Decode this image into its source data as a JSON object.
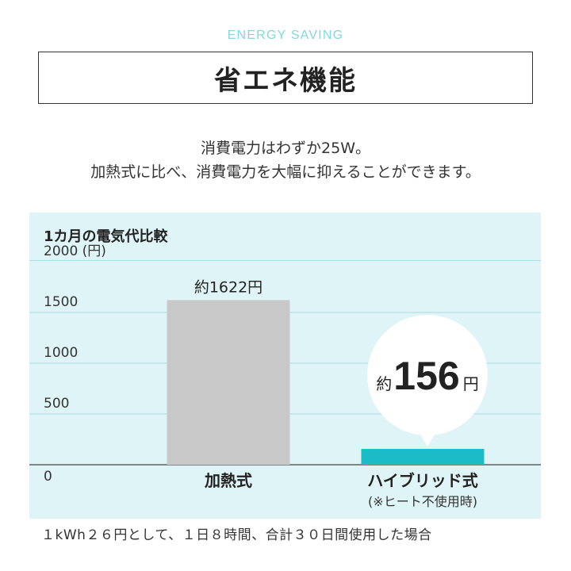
{
  "header": {
    "eyebrow": "ENERGY SAVING",
    "title": "省エネ機能"
  },
  "description": {
    "line1": "消費電力はわずか25W。",
    "line2": "加熱式に比べ、消費電力を大幅に抑えることができます。"
  },
  "colors": {
    "accent": "#1bbcc8",
    "eyebrow": "#7fd8de",
    "panel_bg": "#dff4f6",
    "gray_bar": "#c8c8c8"
  },
  "chart_data": {
    "type": "bar",
    "title": "1カ月の電気代比較",
    "y_unit_label": "(円)",
    "ylim": [
      0,
      2000
    ],
    "yticks": [
      "2000",
      "1500",
      "1000",
      "500",
      "0"
    ],
    "categories": [
      "加熱式",
      "ハイブリッド式"
    ],
    "category_notes": [
      "",
      "(※ヒート不使用時)"
    ],
    "values": [
      1622,
      156
    ],
    "value_labels": [
      {
        "prefix": "約",
        "number": "1622",
        "suffix": "円"
      },
      {
        "prefix": "約",
        "number": "156",
        "suffix": "円"
      }
    ],
    "bar_colors": [
      "#c8c8c8",
      "#1bbcc8"
    ],
    "grid": true
  },
  "footnote": "１kWh２６円として、１日８時間、合計３０日間使用した場合"
}
